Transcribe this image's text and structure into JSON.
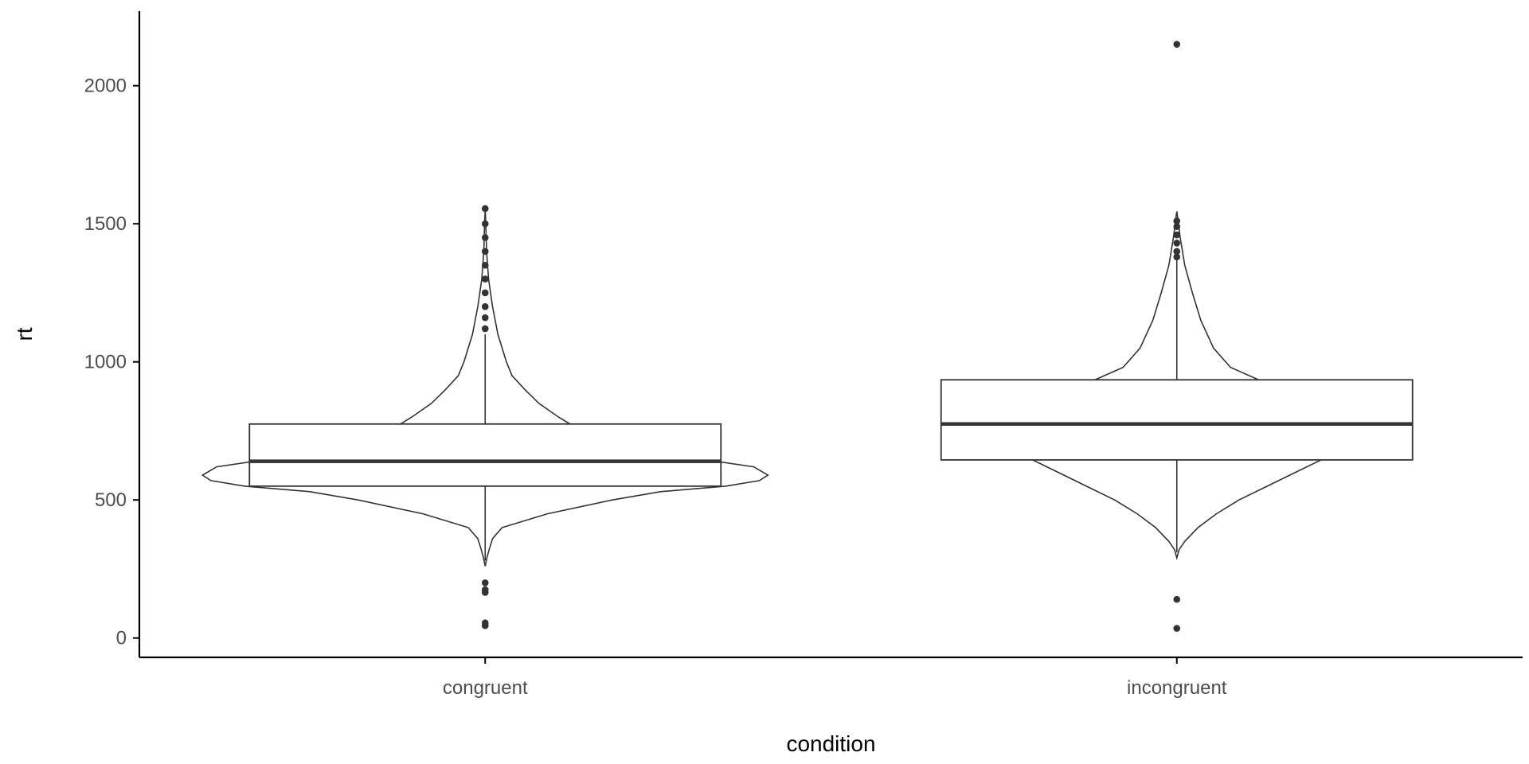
{
  "chart_data": {
    "type": "violin",
    "xlabel": "condition",
    "ylabel": "rt",
    "categories": [
      "congruent",
      "incongruent"
    ],
    "ylim": [
      -70,
      2270
    ],
    "yticks": [
      0,
      500,
      1000,
      1500,
      2000
    ],
    "grid": false,
    "legend": "none",
    "colors": {
      "line": "#333333",
      "axis": "#000000",
      "fill": "#ffffff",
      "tick_text": "#4d4d4d"
    },
    "groups": [
      {
        "name": "congruent",
        "box": {
          "q1": 550,
          "median": 640,
          "q3": 775,
          "whisker_low": 280,
          "whisker_high": 1100
        },
        "outliers": [
          45,
          55,
          165,
          175,
          200,
          1120,
          1160,
          1200,
          1250,
          1300,
          1350,
          1400,
          1450,
          1500,
          1555
        ],
        "density": [
          [
            260,
            0.0
          ],
          [
            290,
            0.006
          ],
          [
            320,
            0.014
          ],
          [
            360,
            0.026
          ],
          [
            400,
            0.06
          ],
          [
            450,
            0.22
          ],
          [
            500,
            0.45
          ],
          [
            530,
            0.62
          ],
          [
            550,
            0.85
          ],
          [
            570,
            0.97
          ],
          [
            590,
            1.0
          ],
          [
            620,
            0.95
          ],
          [
            650,
            0.75
          ],
          [
            670,
            0.55
          ],
          [
            700,
            0.4
          ],
          [
            740,
            0.34
          ],
          [
            775,
            0.3
          ],
          [
            800,
            0.26
          ],
          [
            850,
            0.19
          ],
          [
            900,
            0.14
          ],
          [
            950,
            0.095
          ],
          [
            1000,
            0.075
          ],
          [
            1100,
            0.045
          ],
          [
            1200,
            0.026
          ],
          [
            1300,
            0.012
          ],
          [
            1400,
            0.005
          ],
          [
            1500,
            0.002
          ],
          [
            1555,
            0.0
          ]
        ]
      },
      {
        "name": "incongruent",
        "box": {
          "q1": 645,
          "median": 775,
          "q3": 935,
          "whisker_low": 310,
          "whisker_high": 1370
        },
        "outliers": [
          35,
          140,
          1380,
          1400,
          1430,
          1460,
          1490,
          1510,
          2150
        ],
        "density": [
          [
            290,
            0.0
          ],
          [
            320,
            0.008
          ],
          [
            350,
            0.028
          ],
          [
            400,
            0.075
          ],
          [
            450,
            0.14
          ],
          [
            500,
            0.22
          ],
          [
            550,
            0.32
          ],
          [
            600,
            0.42
          ],
          [
            645,
            0.51
          ],
          [
            680,
            0.58
          ],
          [
            720,
            0.62
          ],
          [
            780,
            0.62
          ],
          [
            840,
            0.58
          ],
          [
            900,
            0.45
          ],
          [
            935,
            0.29
          ],
          [
            980,
            0.19
          ],
          [
            1050,
            0.13
          ],
          [
            1150,
            0.085
          ],
          [
            1250,
            0.055
          ],
          [
            1350,
            0.028
          ],
          [
            1450,
            0.012
          ],
          [
            1530,
            0.002
          ],
          [
            1545,
            0.0
          ]
        ]
      }
    ]
  }
}
